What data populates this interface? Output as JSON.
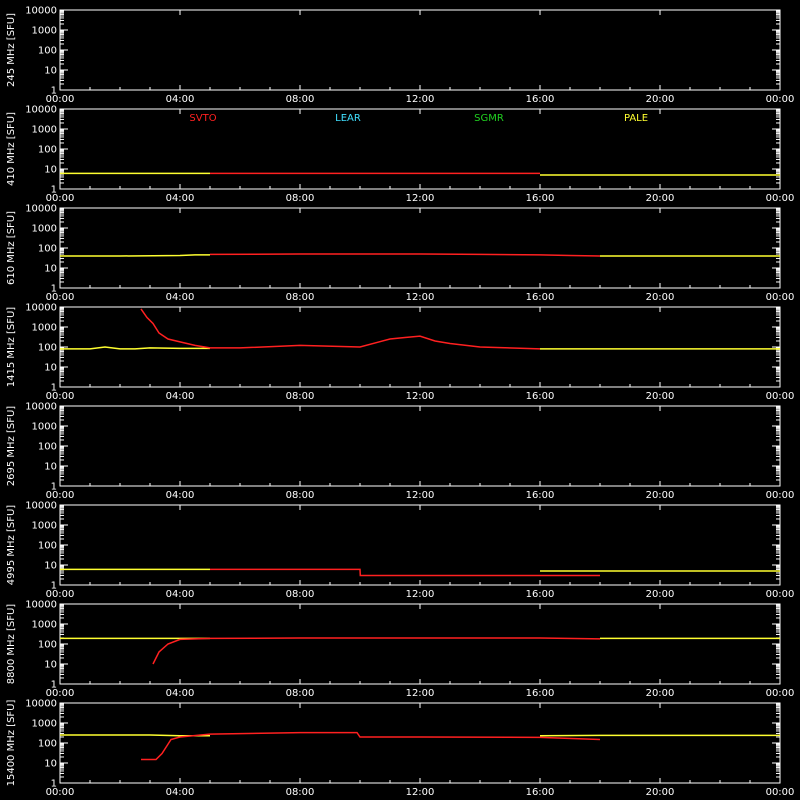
{
  "colors": {
    "background": "#000000",
    "axes": "#ffffff",
    "stations": {
      "SVTO": "#ff2020",
      "LEAR": "#40e0ff",
      "SGMR": "#20d020",
      "PALE": "#ffff30"
    }
  },
  "chart_data": {
    "type": "line",
    "time_ticks": [
      "00:00",
      "04:00",
      "08:00",
      "12:00",
      "16:00",
      "20:00",
      "00:00"
    ],
    "y_ticks": [
      "10000",
      "1000",
      "100",
      "10",
      "1"
    ],
    "ylim": [
      1,
      10000
    ],
    "y_scale": "log",
    "xlim_hours": [
      0,
      24
    ],
    "legend": [
      {
        "name": "SVTO",
        "color": "#ff2020"
      },
      {
        "name": "LEAR",
        "color": "#40e0ff"
      },
      {
        "name": "SGMR",
        "color": "#20d020"
      },
      {
        "name": "PALE",
        "color": "#ffff30"
      }
    ],
    "panels": [
      {
        "label": "245 MHz [SFU]",
        "series": []
      },
      {
        "label": "410 MHz [SFU]",
        "series": [
          {
            "station": "PALE",
            "x": [
              0,
              5,
              5.01
            ],
            "y": [
              6,
              6,
              null
            ]
          },
          {
            "station": "SVTO",
            "x": [
              5,
              16
            ],
            "y": [
              6,
              6
            ]
          },
          {
            "station": "PALE",
            "x": [
              16,
              24
            ],
            "y": [
              5,
              5
            ]
          }
        ]
      },
      {
        "label": "610 MHz [SFU]",
        "series": [
          {
            "station": "PALE",
            "x": [
              0,
              2,
              4,
              4.5,
              5
            ],
            "y": [
              40,
              40,
              42,
              45,
              45
            ]
          },
          {
            "station": "SVTO",
            "x": [
              5,
              8,
              10,
              12,
              14,
              16,
              17,
              18
            ],
            "y": [
              48,
              50,
              50,
              50,
              48,
              45,
              42,
              40
            ]
          },
          {
            "station": "PALE",
            "x": [
              18,
              20,
              22,
              24
            ],
            "y": [
              40,
              40,
              40,
              40
            ]
          }
        ]
      },
      {
        "label": "1415 MHz [SFU]",
        "series": [
          {
            "station": "PALE",
            "x": [
              0,
              1,
              1.5,
              2,
              2.5,
              3,
              4,
              5
            ],
            "y": [
              80,
              80,
              100,
              80,
              80,
              90,
              85,
              85
            ]
          },
          {
            "station": "SVTO",
            "x": [
              2.7,
              2.9,
              3.1,
              3.3,
              3.6,
              4,
              4.5,
              5,
              6,
              8,
              10,
              11,
              11.5,
              12,
              12.5,
              13,
              14,
              16
            ],
            "y": [
              8000,
              3000,
              1500,
              500,
              250,
              180,
              120,
              90,
              90,
              120,
              100,
              250,
              300,
              350,
              200,
              150,
              100,
              80
            ]
          },
          {
            "station": "PALE",
            "x": [
              16,
              18,
              20,
              22,
              24
            ],
            "y": [
              80,
              80,
              80,
              80,
              80
            ]
          }
        ]
      },
      {
        "label": "2695 MHz [SFU]",
        "series": []
      },
      {
        "label": "4995 MHz [SFU]",
        "series": [
          {
            "station": "PALE",
            "x": [
              0,
              5
            ],
            "y": [
              6,
              6
            ]
          },
          {
            "station": "SVTO",
            "x": [
              5,
              10,
              10.01,
              18
            ],
            "y": [
              6,
              6,
              3,
              3
            ]
          },
          {
            "station": "PALE",
            "x": [
              16,
              24
            ],
            "y": [
              5,
              5
            ]
          }
        ]
      },
      {
        "label": "8800 MHz [SFU]",
        "series": [
          {
            "station": "PALE",
            "x": [
              0,
              2,
              4,
              5
            ],
            "y": [
              190,
              190,
              190,
              190
            ]
          },
          {
            "station": "SVTO",
            "x": [
              3.1,
              3.3,
              3.6,
              4,
              5,
              8,
              10,
              12,
              16,
              18
            ],
            "y": [
              10,
              40,
              100,
              170,
              190,
              200,
              200,
              200,
              200,
              180
            ]
          },
          {
            "station": "PALE",
            "x": [
              18,
              20,
              22,
              24
            ],
            "y": [
              190,
              190,
              190,
              190
            ]
          }
        ]
      },
      {
        "label": "15400 MHz [SFU]",
        "series": [
          {
            "station": "PALE",
            "x": [
              0,
              2,
              3,
              4,
              5
            ],
            "y": [
              250,
              250,
              250,
              230,
              230
            ]
          },
          {
            "station": "SVTO",
            "x": [
              2.7,
              3.2,
              3.4,
              3.7,
              4,
              5,
              8,
              9.9,
              10,
              12,
              16,
              18
            ],
            "y": [
              15,
              15,
              30,
              150,
              200,
              280,
              330,
              330,
              200,
              200,
              190,
              150
            ]
          },
          {
            "station": "PALE",
            "x": [
              16,
              18,
              20,
              22,
              24
            ],
            "y": [
              230,
              240,
              240,
              240,
              240
            ]
          }
        ]
      }
    ]
  }
}
